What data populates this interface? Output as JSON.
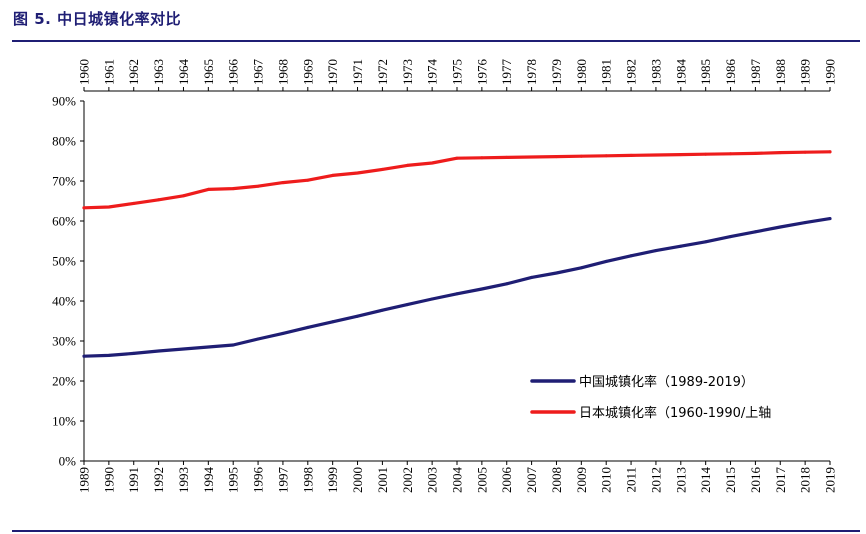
{
  "figure": {
    "title": "图 5. 中日城镇化率对比",
    "title_color": "#1f1e74",
    "rule_color": "#1f1e74"
  },
  "chart_data": {
    "type": "line",
    "grid": false,
    "legend_position": "bottom-right",
    "ylim": [
      0,
      90
    ],
    "y_ticks": [
      "0%",
      "10%",
      "20%",
      "30%",
      "40%",
      "50%",
      "60%",
      "70%",
      "80%",
      "90%"
    ],
    "x_bottom_years": [
      "1989",
      "1990",
      "1991",
      "1992",
      "1993",
      "1994",
      "1995",
      "1996",
      "1997",
      "1998",
      "1999",
      "2000",
      "2001",
      "2002",
      "2003",
      "2004",
      "2005",
      "2006",
      "2007",
      "2008",
      "2009",
      "2010",
      "2011",
      "2012",
      "2013",
      "2014",
      "2015",
      "2016",
      "2017",
      "2018",
      "2019"
    ],
    "x_top_years": [
      "1960",
      "1961",
      "1962",
      "1963",
      "1964",
      "1965",
      "1966",
      "1967",
      "1968",
      "1969",
      "1970",
      "1971",
      "1972",
      "1973",
      "1974",
      "1975",
      "1976",
      "1977",
      "1978",
      "1979",
      "1980",
      "1981",
      "1982",
      "1983",
      "1984",
      "1985",
      "1986",
      "1987",
      "1988",
      "1989",
      "1990"
    ],
    "series": [
      {
        "name": "中国城镇化率（1989-2019）",
        "axis": "bottom",
        "color": "#1f1e74",
        "values": [
          26.2,
          26.4,
          26.9,
          27.5,
          28.0,
          28.5,
          29.0,
          30.5,
          31.9,
          33.4,
          34.8,
          36.2,
          37.7,
          39.1,
          40.5,
          41.8,
          43.0,
          44.3,
          45.9,
          47.0,
          48.3,
          49.9,
          51.3,
          52.6,
          53.7,
          54.8,
          56.1,
          57.3,
          58.5,
          59.6,
          60.6
        ]
      },
      {
        "name": "日本城镇化率（1960-1990/上轴",
        "axis": "top",
        "color": "#ee1c1c",
        "values": [
          63.3,
          63.5,
          64.4,
          65.3,
          66.3,
          67.9,
          68.1,
          68.7,
          69.6,
          70.2,
          71.4,
          72.0,
          72.9,
          73.9,
          74.5,
          75.7,
          75.8,
          75.9,
          76.0,
          76.1,
          76.2,
          76.3,
          76.4,
          76.5,
          76.6,
          76.7,
          76.8,
          76.9,
          77.1,
          77.2,
          77.3
        ]
      }
    ]
  }
}
